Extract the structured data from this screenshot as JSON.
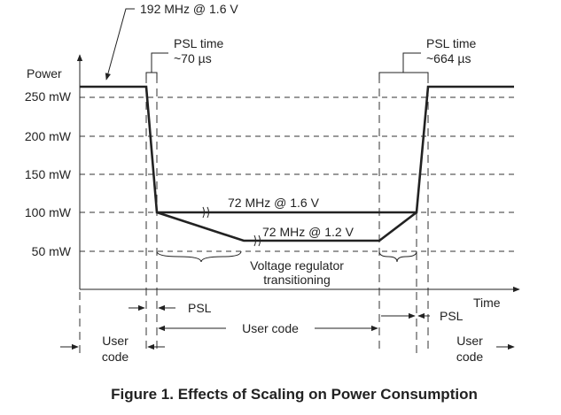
{
  "annotations": {
    "top_freq": "192 MHz @ 1.6 V",
    "psl_left_title": "PSL time",
    "psl_left_time": "~70 µs",
    "psl_right_title": "PSL time",
    "psl_right_time": "~664 µs",
    "mid_high": "72 MHz @ 1.6 V",
    "mid_low": "72 MHz @ 1.2 V",
    "regulator_1": "Voltage regulator",
    "regulator_2": "transitioning"
  },
  "axes": {
    "y_label": "Power",
    "x_label": "Time",
    "y_ticks": [
      "250 mW",
      "200 mW",
      "150 mW",
      "100 mW",
      "50 mW"
    ]
  },
  "phases": {
    "psl_left": "PSL",
    "user_code_mid": "User code",
    "psl_right": "PSL",
    "user_left_1": "User",
    "user_left_2": "code",
    "user_right_1": "User",
    "user_right_2": "code"
  },
  "caption": "Figure 1.  Effects of Scaling on Power Consumption"
}
